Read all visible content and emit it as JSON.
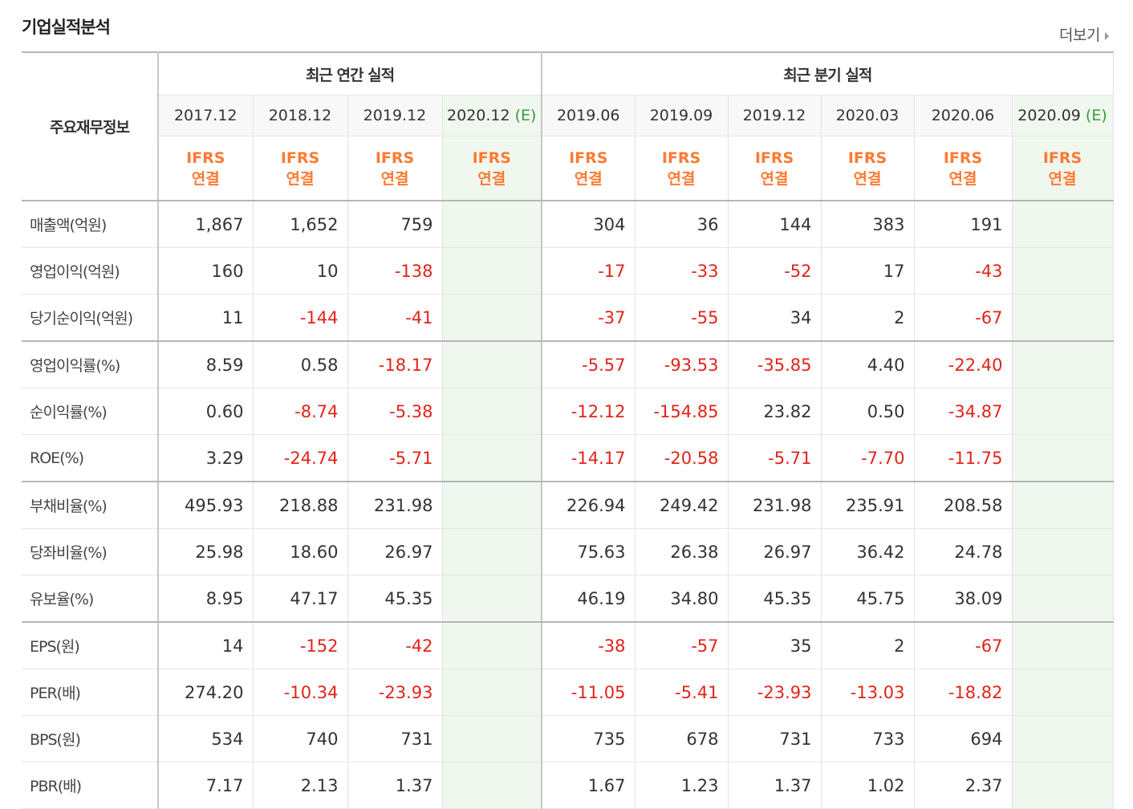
{
  "title": "기업실적분석",
  "more_label": "더보기",
  "header": {
    "row_label": "주요재무정보",
    "annual_group": "최근 연간 실적",
    "quarter_group": "최근 분기 실적",
    "periods": [
      "2017.12",
      "2018.12",
      "2019.12",
      "2020.12",
      "2019.06",
      "2019.09",
      "2019.12",
      "2020.03",
      "2020.06",
      "2020.09"
    ],
    "estimate_mark": "(E)",
    "ifrs_line1": "IFRS",
    "ifrs_line2": "연결"
  },
  "rows": [
    {
      "label": "매출액(억원)",
      "values": [
        "1,867",
        "1,652",
        "759",
        "",
        "304",
        "36",
        "144",
        "383",
        "191",
        ""
      ]
    },
    {
      "label": "영업이익(억원)",
      "values": [
        "160",
        "10",
        "-138",
        "",
        "-17",
        "-33",
        "-52",
        "17",
        "-43",
        ""
      ]
    },
    {
      "label": "당기순이익(억원)",
      "values": [
        "11",
        "-144",
        "-41",
        "",
        "-37",
        "-55",
        "34",
        "2",
        "-67",
        ""
      ]
    },
    {
      "label": "영업이익률(%)",
      "values": [
        "8.59",
        "0.58",
        "-18.17",
        "",
        "-5.57",
        "-93.53",
        "-35.85",
        "4.40",
        "-22.40",
        ""
      ]
    },
    {
      "label": "순이익률(%)",
      "values": [
        "0.60",
        "-8.74",
        "-5.38",
        "",
        "-12.12",
        "-154.85",
        "23.82",
        "0.50",
        "-34.87",
        ""
      ]
    },
    {
      "label": "ROE(%)",
      "values": [
        "3.29",
        "-24.74",
        "-5.71",
        "",
        "-14.17",
        "-20.58",
        "-5.71",
        "-7.70",
        "-11.75",
        ""
      ]
    },
    {
      "label": "부채비율(%)",
      "values": [
        "495.93",
        "218.88",
        "231.98",
        "",
        "226.94",
        "249.42",
        "231.98",
        "235.91",
        "208.58",
        ""
      ]
    },
    {
      "label": "당좌비율(%)",
      "values": [
        "25.98",
        "18.60",
        "26.97",
        "",
        "75.63",
        "26.38",
        "26.97",
        "36.42",
        "24.78",
        ""
      ]
    },
    {
      "label": "유보율(%)",
      "values": [
        "8.95",
        "47.17",
        "45.35",
        "",
        "46.19",
        "34.80",
        "45.35",
        "45.75",
        "38.09",
        ""
      ]
    },
    {
      "label": "EPS(원)",
      "values": [
        "14",
        "-152",
        "-42",
        "",
        "-38",
        "-57",
        "35",
        "2",
        "-67",
        ""
      ]
    },
    {
      "label": "PER(배)",
      "values": [
        "274.20",
        "-10.34",
        "-23.93",
        "",
        "-11.05",
        "-5.41",
        "-23.93",
        "-13.03",
        "-18.82",
        ""
      ]
    },
    {
      "label": "BPS(원)",
      "values": [
        "534",
        "740",
        "731",
        "",
        "735",
        "678",
        "731",
        "733",
        "694",
        ""
      ]
    },
    {
      "label": "PBR(배)",
      "values": [
        "7.17",
        "2.13",
        "1.37",
        "",
        "1.67",
        "1.23",
        "1.37",
        "1.02",
        "2.37",
        ""
      ]
    }
  ]
}
